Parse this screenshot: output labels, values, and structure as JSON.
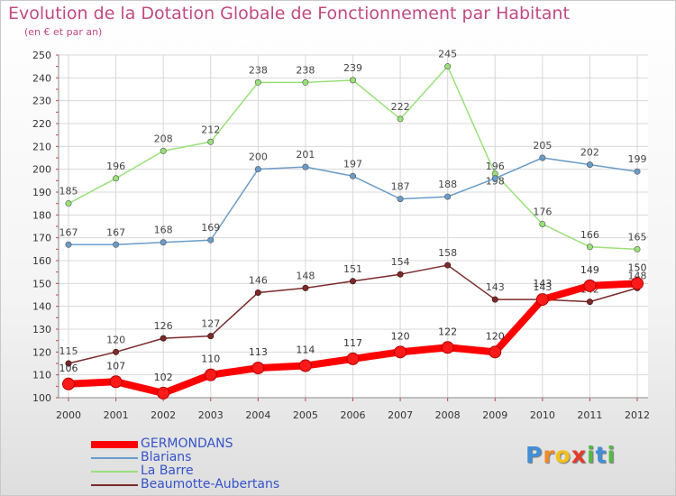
{
  "title": "Evolution de la Dotation Globale de Fonctionnement par Habitant",
  "subtitle": "(en € et par an)",
  "chart_data": {
    "type": "line",
    "categories": [
      "2000",
      "2001",
      "2002",
      "2003",
      "2004",
      "2005",
      "2006",
      "2007",
      "2008",
      "2009",
      "2010",
      "2011",
      "2012"
    ],
    "ylim": [
      100,
      250
    ],
    "yticks": [
      100,
      110,
      120,
      130,
      140,
      150,
      160,
      170,
      180,
      190,
      200,
      210,
      220,
      230,
      240,
      250
    ],
    "grid": true,
    "legend_position": "bottom-left",
    "series": [
      {
        "name": "GERMONDANS",
        "color": "#ff0000",
        "values": [
          106,
          107,
          102,
          110,
          113,
          114,
          117,
          120,
          122,
          120,
          143,
          149,
          150
        ]
      },
      {
        "name": "Blarians",
        "color": "#6a9cc8",
        "values": [
          167,
          167,
          168,
          169,
          200,
          201,
          197,
          187,
          188,
          196,
          205,
          202,
          199
        ]
      },
      {
        "name": "La Barre",
        "color": "#9ae07a",
        "values": [
          185,
          196,
          208,
          212,
          238,
          238,
          239,
          222,
          245,
          198,
          176,
          166,
          165
        ]
      },
      {
        "name": "Beaumotte-Aubertans",
        "color": "#7a2a2a",
        "values": [
          115,
          120,
          126,
          127,
          146,
          148,
          151,
          154,
          158,
          143,
          143,
          142,
          148
        ]
      }
    ]
  },
  "logo": {
    "letters": [
      "P",
      "r",
      "o",
      "x",
      "i",
      "t",
      "i"
    ],
    "colors": [
      "#3f8fd6",
      "#f08a2b",
      "#f2c21c",
      "#e23b2c",
      "#56b848",
      "#3f8fd6",
      "#56b848"
    ]
  }
}
